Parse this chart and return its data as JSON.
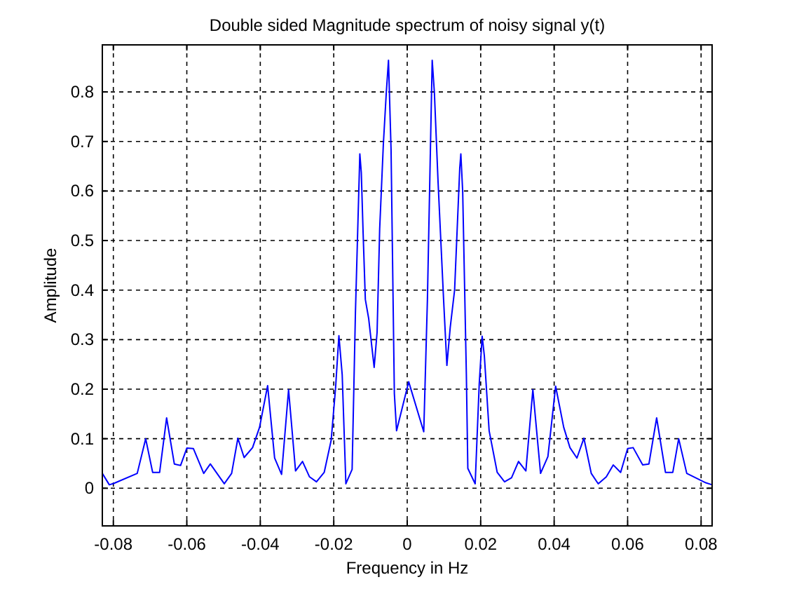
{
  "chart_data": {
    "type": "line",
    "title": "Double sided Magnitude spectrum of noisy signal y(t)",
    "xlabel": "Frequency in Hz",
    "ylabel": "Amplitude",
    "xlim": [
      -0.083,
      0.083
    ],
    "ylim": [
      -0.076,
      0.895
    ],
    "xticks": [
      -0.08,
      -0.06,
      -0.04,
      -0.02,
      0,
      0.02,
      0.04,
      0.06,
      0.08
    ],
    "yticks": [
      0,
      0.1,
      0.2,
      0.3,
      0.4,
      0.5,
      0.6,
      0.7,
      0.8
    ],
    "grid": true,
    "line_style": "solid",
    "marker": "none",
    "series": [
      {
        "color": "#0000ff",
        "x": [
          -0.083,
          -0.0811,
          -0.0798,
          -0.0735,
          -0.0712,
          -0.0693,
          -0.0674,
          -0.0655,
          -0.0634,
          -0.0617,
          -0.06,
          -0.0582,
          -0.0554,
          -0.0536,
          -0.0498,
          -0.0478,
          -0.0461,
          -0.0444,
          -0.0421,
          -0.0402,
          -0.038,
          -0.0361,
          -0.0342,
          -0.0323,
          -0.0304,
          -0.0285,
          -0.0266,
          -0.0247,
          -0.0226,
          -0.0207,
          -0.0195,
          -0.0186,
          -0.0177,
          -0.0167,
          -0.015,
          -0.0141,
          -0.0129,
          -0.0125,
          -0.012,
          -0.0114,
          -0.0105,
          -0.009,
          -0.0082,
          -0.0075,
          -0.0065,
          -0.0057,
          -0.0051,
          -0.0044,
          -0.0035,
          -0.0029,
          0.0004,
          0.0045,
          0.0055,
          0.0068,
          0.0074,
          0.0084,
          0.0099,
          0.0108,
          0.0117,
          0.0129,
          0.0143,
          0.0146,
          0.0151,
          0.0161,
          0.0165,
          0.0185,
          0.0196,
          0.0204,
          0.021,
          0.0223,
          0.0245,
          0.0265,
          0.0284,
          0.0303,
          0.0323,
          0.0342,
          0.0363,
          0.0383,
          0.0404,
          0.0426,
          0.0443,
          0.0462,
          0.0481,
          0.0501,
          0.052,
          0.0542,
          0.0561,
          0.0581,
          0.06,
          0.0615,
          0.0641,
          0.0658,
          0.0679,
          0.0703,
          0.0723,
          0.0739,
          0.0761,
          0.0813,
          0.083
        ],
        "values": [
          0.03,
          0.007,
          0.01,
          0.03,
          0.1,
          0.032,
          0.032,
          0.142,
          0.049,
          0.046,
          0.081,
          0.08,
          0.03,
          0.049,
          0.009,
          0.03,
          0.101,
          0.062,
          0.082,
          0.123,
          0.207,
          0.061,
          0.028,
          0.199,
          0.035,
          0.054,
          0.023,
          0.013,
          0.032,
          0.097,
          0.203,
          0.308,
          0.229,
          0.009,
          0.038,
          0.354,
          0.675,
          0.637,
          0.514,
          0.381,
          0.343,
          0.244,
          0.315,
          0.523,
          0.694,
          0.798,
          0.864,
          0.684,
          0.191,
          0.116,
          0.215,
          0.114,
          0.381,
          0.864,
          0.798,
          0.618,
          0.381,
          0.248,
          0.324,
          0.4,
          0.646,
          0.675,
          0.599,
          0.229,
          0.04,
          0.009,
          0.21,
          0.307,
          0.267,
          0.116,
          0.032,
          0.013,
          0.021,
          0.054,
          0.035,
          0.199,
          0.03,
          0.064,
          0.206,
          0.123,
          0.082,
          0.061,
          0.101,
          0.03,
          0.009,
          0.023,
          0.047,
          0.032,
          0.08,
          0.082,
          0.047,
          0.049,
          0.142,
          0.032,
          0.032,
          0.1,
          0.03,
          0.011,
          0.007
        ]
      }
    ]
  }
}
